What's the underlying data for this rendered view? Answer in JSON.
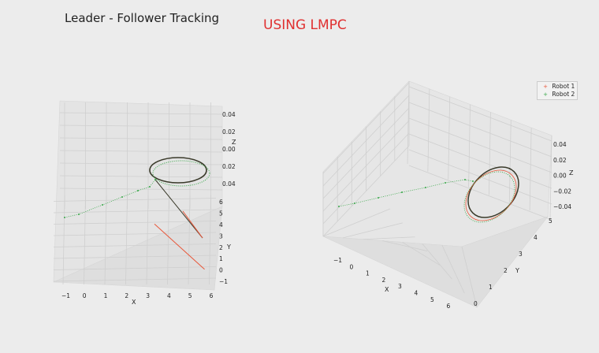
{
  "figure": {
    "title": "Leader - Follower Tracking",
    "subtitle": "USING LMPC",
    "subtitle_color": "#e03030"
  },
  "colors": {
    "robot1": "#e8573a",
    "robot2": "#3aa84a",
    "background": "#ececec"
  },
  "legend": {
    "items": [
      {
        "label": "Robot 1",
        "marker": "+",
        "color": "#e8573a"
      },
      {
        "label": "Robot 2",
        "marker": "+",
        "color": "#3aa84a"
      }
    ]
  },
  "chart_data": [
    {
      "type": "scatter3d",
      "view": "left",
      "xlabel": "X",
      "ylabel": "Y",
      "zlabel": "Z",
      "x_ticks": [
        "−1",
        "0",
        "1",
        "2",
        "3",
        "4",
        "5",
        "6"
      ],
      "y_ticks": [
        "−1",
        "0",
        "1",
        "2",
        "3",
        "4",
        "5",
        "6"
      ],
      "z_ticks": [
        "0.04",
        "0.02",
        "0.00",
        "0.02",
        "0.04"
      ],
      "xlim": [
        -1.2,
        6.2
      ],
      "ylim": [
        -1.2,
        6.2
      ],
      "zlim": [
        -0.05,
        0.05
      ],
      "grid": true,
      "series": [
        {
          "name": "Robot 1",
          "path_xy": [
            [
              5.7,
              -0.6
            ],
            [
              4.5,
              1.0
            ],
            [
              3.3,
              2.6
            ],
            [
              3.3,
              3.0
            ],
            [
              3.6,
              3.8
            ],
            [
              4.4,
              4.2
            ],
            [
              5.0,
              4.0
            ],
            [
              4.8,
              3.3
            ],
            [
              4.0,
              2.9
            ],
            [
              3.4,
              3.0
            ]
          ]
        },
        {
          "name": "Robot 2",
          "path_xy": [
            [
              -0.8,
              3.9
            ],
            [
              0.0,
              4.2
            ],
            [
              1.0,
              4.6
            ],
            [
              2.0,
              4.9
            ],
            [
              3.0,
              5.3
            ],
            [
              3.3,
              3.0
            ],
            [
              3.6,
              3.8
            ],
            [
              4.4,
              4.2
            ],
            [
              5.0,
              4.0
            ],
            [
              4.8,
              3.3
            ],
            [
              4.0,
              2.9
            ],
            [
              3.4,
              3.0
            ]
          ]
        }
      ]
    },
    {
      "type": "scatter3d",
      "view": "right",
      "xlabel": "X",
      "ylabel": "Y",
      "zlabel": "Z",
      "x_ticks": [
        "−1",
        "0",
        "1",
        "2",
        "3",
        "4",
        "5",
        "6"
      ],
      "y_ticks": [
        "0",
        "1",
        "2",
        "3",
        "4",
        "5"
      ],
      "z_ticks": [
        "0.04",
        "0.02",
        "0.00",
        "−0.02",
        "−0.04"
      ],
      "xlim": [
        -1.2,
        6.2
      ],
      "ylim": [
        -0.2,
        5.2
      ],
      "zlim": [
        -0.05,
        0.05
      ],
      "grid": true,
      "legend_position": "top-right",
      "series": [
        {
          "name": "Robot 1",
          "path_xy": [
            [
              3.0,
              3.8
            ],
            [
              3.8,
              4.6
            ],
            [
              4.8,
              4.4
            ],
            [
              5.2,
              3.4
            ],
            [
              4.5,
              2.6
            ],
            [
              3.4,
              2.8
            ],
            [
              3.0,
              3.8
            ]
          ]
        },
        {
          "name": "Robot 2",
          "path_xy": [
            [
              -1.0,
              3.2
            ],
            [
              0.5,
              3.5
            ],
            [
              1.8,
              3.9
            ],
            [
              3.0,
              3.8
            ],
            [
              3.8,
              4.6
            ],
            [
              4.8,
              4.4
            ],
            [
              5.2,
              3.4
            ],
            [
              4.5,
              2.6
            ],
            [
              3.4,
              2.8
            ],
            [
              3.0,
              3.8
            ]
          ]
        }
      ]
    }
  ]
}
